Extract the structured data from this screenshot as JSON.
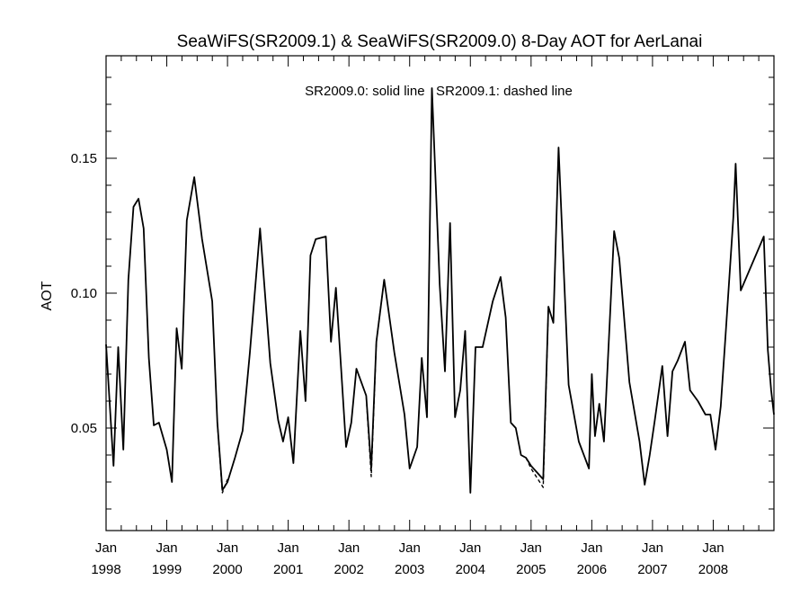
{
  "chart_data": {
    "type": "line",
    "title": "SeaWiFS(SR2009.1) & SeaWiFS(SR2009.0) 8-Day AOT for AerLanai",
    "annotation": "SR2009.0: solid line   SR2009.1: dashed line",
    "xlabel": "",
    "ylabel": "AOT",
    "xlim": [
      "1998-01-01",
      "2009-01-01"
    ],
    "ylim": [
      0.012,
      0.188
    ],
    "yticks": [
      0.05,
      0.1,
      0.15
    ],
    "ytick_labels": [
      "0.05",
      "0.10",
      "0.15"
    ],
    "xticks": [
      {
        "x": "1998-01-01",
        "month": "Jan",
        "year": "1998"
      },
      {
        "x": "1999-01-01",
        "month": "Jan",
        "year": "1999"
      },
      {
        "x": "2000-01-01",
        "month": "Jan",
        "year": "2000"
      },
      {
        "x": "2001-01-01",
        "month": "Jan",
        "year": "2001"
      },
      {
        "x": "2002-01-01",
        "month": "Jan",
        "year": "2002"
      },
      {
        "x": "2003-01-01",
        "month": "Jan",
        "year": "2003"
      },
      {
        "x": "2004-01-01",
        "month": "Jan",
        "year": "2004"
      },
      {
        "x": "2005-01-01",
        "month": "Jan",
        "year": "2005"
      },
      {
        "x": "2006-01-01",
        "month": "Jan",
        "year": "2006"
      },
      {
        "x": "2007-01-01",
        "month": "Jan",
        "year": "2007"
      },
      {
        "x": "2008-01-01",
        "month": "Jan",
        "year": "2008"
      }
    ],
    "grid": false,
    "series": [
      {
        "name": "SR2009.0",
        "style": "solid",
        "color": "#000000",
        "points": [
          [
            "1998-01-01",
            0.081
          ],
          [
            "1998-02-15",
            0.036
          ],
          [
            "1998-03-15",
            0.08
          ],
          [
            "1998-04-15",
            0.042
          ],
          [
            "1998-05-15",
            0.105
          ],
          [
            "1998-06-15",
            0.132
          ],
          [
            "1998-07-15",
            0.135
          ],
          [
            "1998-08-15",
            0.124
          ],
          [
            "1998-09-15",
            0.076
          ],
          [
            "1998-10-15",
            0.051
          ],
          [
            "1998-11-15",
            0.052
          ],
          [
            "1999-01-01",
            0.042
          ],
          [
            "1999-02-01",
            0.03
          ],
          [
            "1999-03-01",
            0.087
          ],
          [
            "1999-04-01",
            0.072
          ],
          [
            "1999-05-01",
            0.127
          ],
          [
            "1999-06-15",
            0.143
          ],
          [
            "1999-08-01",
            0.12
          ],
          [
            "1999-10-01",
            0.097
          ],
          [
            "1999-11-01",
            0.052
          ],
          [
            "1999-12-01",
            0.027
          ],
          [
            "2000-01-01",
            0.03
          ],
          [
            "2000-02-15",
            0.039
          ],
          [
            "2000-04-01",
            0.049
          ],
          [
            "2000-05-15",
            0.078
          ],
          [
            "2000-07-15",
            0.124
          ],
          [
            "2000-09-15",
            0.074
          ],
          [
            "2000-11-01",
            0.053
          ],
          [
            "2000-12-01",
            0.045
          ],
          [
            "2001-01-01",
            0.054
          ],
          [
            "2001-02-01",
            0.037
          ],
          [
            "2001-03-15",
            0.086
          ],
          [
            "2001-04-15",
            0.06
          ],
          [
            "2001-05-15",
            0.114
          ],
          [
            "2001-06-15",
            0.12
          ],
          [
            "2001-08-15",
            0.121
          ],
          [
            "2001-09-15",
            0.082
          ],
          [
            "2001-10-15",
            0.102
          ],
          [
            "2001-11-15",
            0.072
          ],
          [
            "2001-12-15",
            0.043
          ],
          [
            "2002-01-15",
            0.052
          ],
          [
            "2002-02-15",
            0.072
          ],
          [
            "2002-04-15",
            0.062
          ],
          [
            "2002-05-15",
            0.035
          ],
          [
            "2002-06-15",
            0.082
          ],
          [
            "2002-08-01",
            0.105
          ],
          [
            "2002-10-01",
            0.078
          ],
          [
            "2002-12-01",
            0.055
          ],
          [
            "2003-01-01",
            0.035
          ],
          [
            "2003-02-15",
            0.043
          ],
          [
            "2003-03-15",
            0.076
          ],
          [
            "2003-04-15",
            0.054
          ],
          [
            "2003-05-15",
            0.176
          ],
          [
            "2003-07-01",
            0.103
          ],
          [
            "2003-08-01",
            0.071
          ],
          [
            "2003-09-01",
            0.126
          ],
          [
            "2003-10-01",
            0.054
          ],
          [
            "2003-11-01",
            0.064
          ],
          [
            "2003-12-01",
            0.086
          ],
          [
            "2004-01-01",
            0.026
          ],
          [
            "2004-02-01",
            0.08
          ],
          [
            "2004-03-15",
            0.08
          ],
          [
            "2004-05-15",
            0.097
          ],
          [
            "2004-07-01",
            0.106
          ],
          [
            "2004-08-01",
            0.091
          ],
          [
            "2004-09-01",
            0.052
          ],
          [
            "2004-10-01",
            0.05
          ],
          [
            "2004-11-01",
            0.04
          ],
          [
            "2004-12-01",
            0.039
          ],
          [
            "2005-01-01",
            0.036
          ],
          [
            "2005-03-15",
            0.031
          ],
          [
            "2005-04-15",
            0.095
          ],
          [
            "2005-05-15",
            0.089
          ],
          [
            "2005-06-15",
            0.154
          ],
          [
            "2005-08-15",
            0.066
          ],
          [
            "2005-10-15",
            0.045
          ],
          [
            "2005-12-15",
            0.035
          ],
          [
            "2006-01-01",
            0.07
          ],
          [
            "2006-01-20",
            0.047
          ],
          [
            "2006-02-15",
            0.059
          ],
          [
            "2006-03-15",
            0.045
          ],
          [
            "2006-05-15",
            0.123
          ],
          [
            "2006-06-15",
            0.113
          ],
          [
            "2006-08-15",
            0.067
          ],
          [
            "2006-10-15",
            0.045
          ],
          [
            "2006-11-15",
            0.029
          ],
          [
            "2006-12-15",
            0.04
          ],
          [
            "2007-01-15",
            0.053
          ],
          [
            "2007-03-01",
            0.073
          ],
          [
            "2007-04-01",
            0.047
          ],
          [
            "2007-05-01",
            0.071
          ],
          [
            "2007-06-01",
            0.075
          ],
          [
            "2007-07-15",
            0.082
          ],
          [
            "2007-08-15",
            0.064
          ],
          [
            "2007-10-01",
            0.06
          ],
          [
            "2007-11-15",
            0.055
          ],
          [
            "2007-12-15",
            0.055
          ],
          [
            "2008-01-15",
            0.042
          ],
          [
            "2008-02-15",
            0.058
          ],
          [
            "2008-03-15",
            0.084
          ],
          [
            "2008-05-01",
            0.128
          ],
          [
            "2008-05-15",
            0.148
          ],
          [
            "2008-06-15",
            0.101
          ],
          [
            "2008-11-01",
            0.121
          ],
          [
            "2008-11-25",
            0.079
          ],
          [
            "2008-12-15",
            0.064
          ],
          [
            "2009-01-01",
            0.055
          ]
        ]
      },
      {
        "name": "SR2009.1",
        "style": "dashed",
        "color": "#000000",
        "points": [
          [
            "1999-11-01",
            0.052
          ],
          [
            "1999-12-01",
            0.026
          ],
          [
            "2000-01-01",
            0.031
          ],
          [
            "2002-02-15",
            0.072
          ],
          [
            "2002-04-15",
            0.062
          ],
          [
            "2002-05-15",
            0.032
          ],
          [
            "2002-06-15",
            0.082
          ],
          [
            "2002-08-01",
            0.105
          ],
          [
            "2004-12-01",
            0.039
          ],
          [
            "2005-01-01",
            0.035
          ],
          [
            "2005-03-15",
            0.028
          ],
          [
            "2005-04-15",
            0.095
          ]
        ]
      }
    ]
  }
}
